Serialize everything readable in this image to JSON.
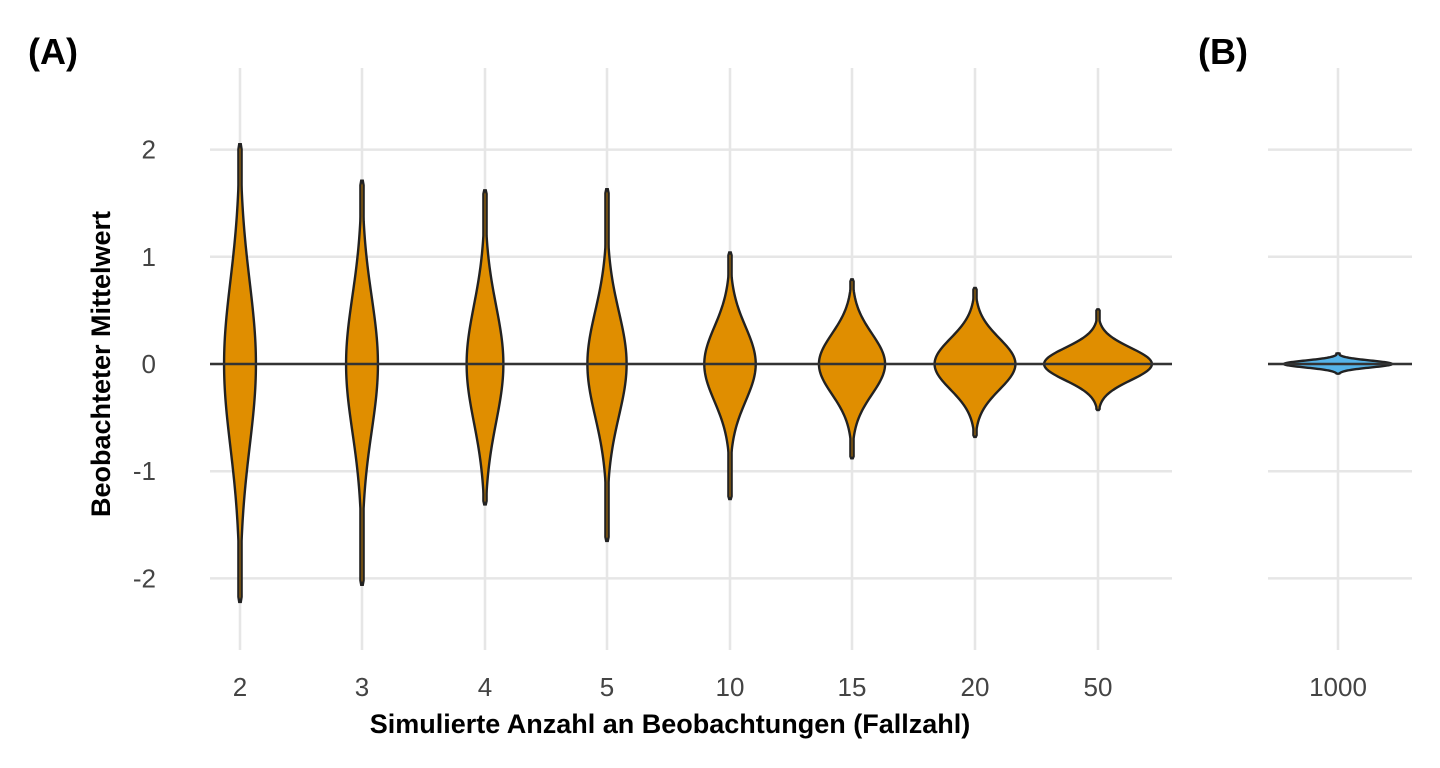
{
  "chart_data": [
    {
      "panel": "(A)",
      "type": "violin",
      "xlabel": "Simulierte Anzahl an Beobachtungen (Fallzahl)",
      "ylabel": "Beobachteter Mittelwert",
      "categories": [
        "2",
        "3",
        "4",
        "5",
        "10",
        "15",
        "20",
        "50"
      ],
      "yticks": [
        "-2",
        "-1",
        "0",
        "1",
        "2"
      ],
      "ylim": [
        -2.7,
        2.7
      ],
      "fill": "#E08E00",
      "outline": "#222222",
      "reference_line_y": 0,
      "distributions": [
        {
          "n": 2,
          "min": -2.22,
          "max": 2.05,
          "sd": 0.71,
          "max_halfwidth": 0.13
        },
        {
          "n": 3,
          "min": -2.06,
          "max": 1.71,
          "sd": 0.58,
          "max_halfwidth": 0.13
        },
        {
          "n": 4,
          "min": -1.31,
          "max": 1.62,
          "sd": 0.5,
          "max_halfwidth": 0.15
        },
        {
          "n": 5,
          "min": -1.65,
          "max": 1.63,
          "sd": 0.45,
          "max_halfwidth": 0.16
        },
        {
          "n": 10,
          "min": -1.26,
          "max": 1.04,
          "sd": 0.32,
          "max_halfwidth": 0.21
        },
        {
          "n": 15,
          "min": -0.88,
          "max": 0.79,
          "sd": 0.26,
          "max_halfwidth": 0.27
        },
        {
          "n": 20,
          "min": -0.68,
          "max": 0.71,
          "sd": 0.22,
          "max_halfwidth": 0.33
        },
        {
          "n": 50,
          "min": -0.43,
          "max": 0.51,
          "sd": 0.14,
          "max_halfwidth": 0.44
        }
      ]
    },
    {
      "panel": "(B)",
      "type": "violin",
      "categories": [
        "1000"
      ],
      "ylim": [
        -2.7,
        2.7
      ],
      "fill": "#56B4E9",
      "outline": "#222222",
      "reference_line_y": 0,
      "distributions": [
        {
          "n": 1000,
          "min": -0.09,
          "max": 0.1,
          "sd": 0.03,
          "max_halfwidth": 0.44
        }
      ]
    }
  ]
}
